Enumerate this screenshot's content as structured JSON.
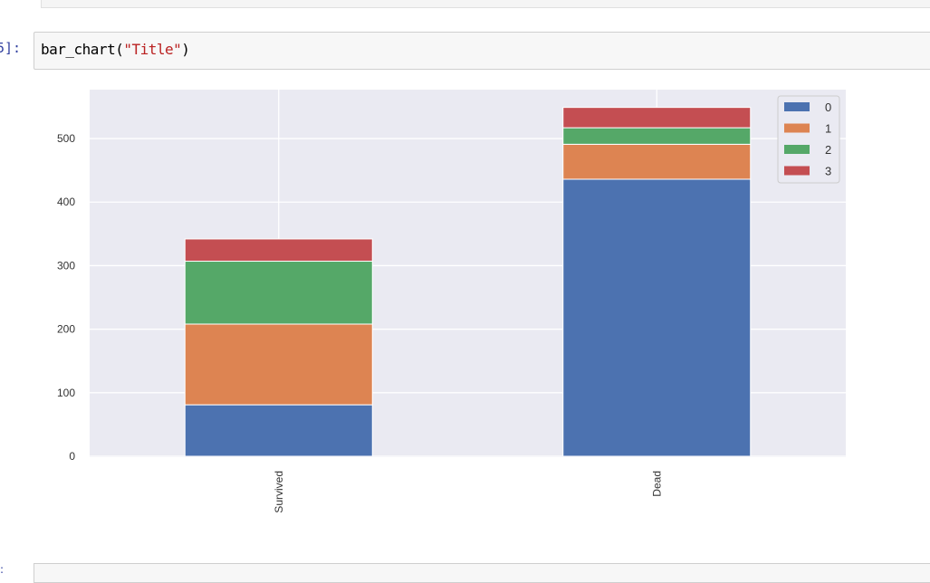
{
  "cell": {
    "prompt": "5]:",
    "code_func": "bar_chart(",
    "code_arg": "\"Title\"",
    "code_end": ")"
  },
  "next_prompt": ":",
  "chart_data": {
    "type": "bar",
    "stacked": true,
    "categories": [
      "Survived",
      "Dead"
    ],
    "series": [
      {
        "name": "0",
        "values": [
          81,
          436
        ],
        "color": "#4c72b0"
      },
      {
        "name": "1",
        "values": [
          127,
          55
        ],
        "color": "#dd8452"
      },
      {
        "name": "2",
        "values": [
          99,
          26
        ],
        "color": "#55a868"
      },
      {
        "name": "3",
        "values": [
          35,
          32
        ],
        "color": "#c44e52"
      }
    ],
    "ylim": [
      0,
      577
    ],
    "yticks": [
      0,
      100,
      200,
      300,
      400,
      500
    ],
    "grid": true,
    "legend": "top-right",
    "background": "#eaeaf2"
  }
}
